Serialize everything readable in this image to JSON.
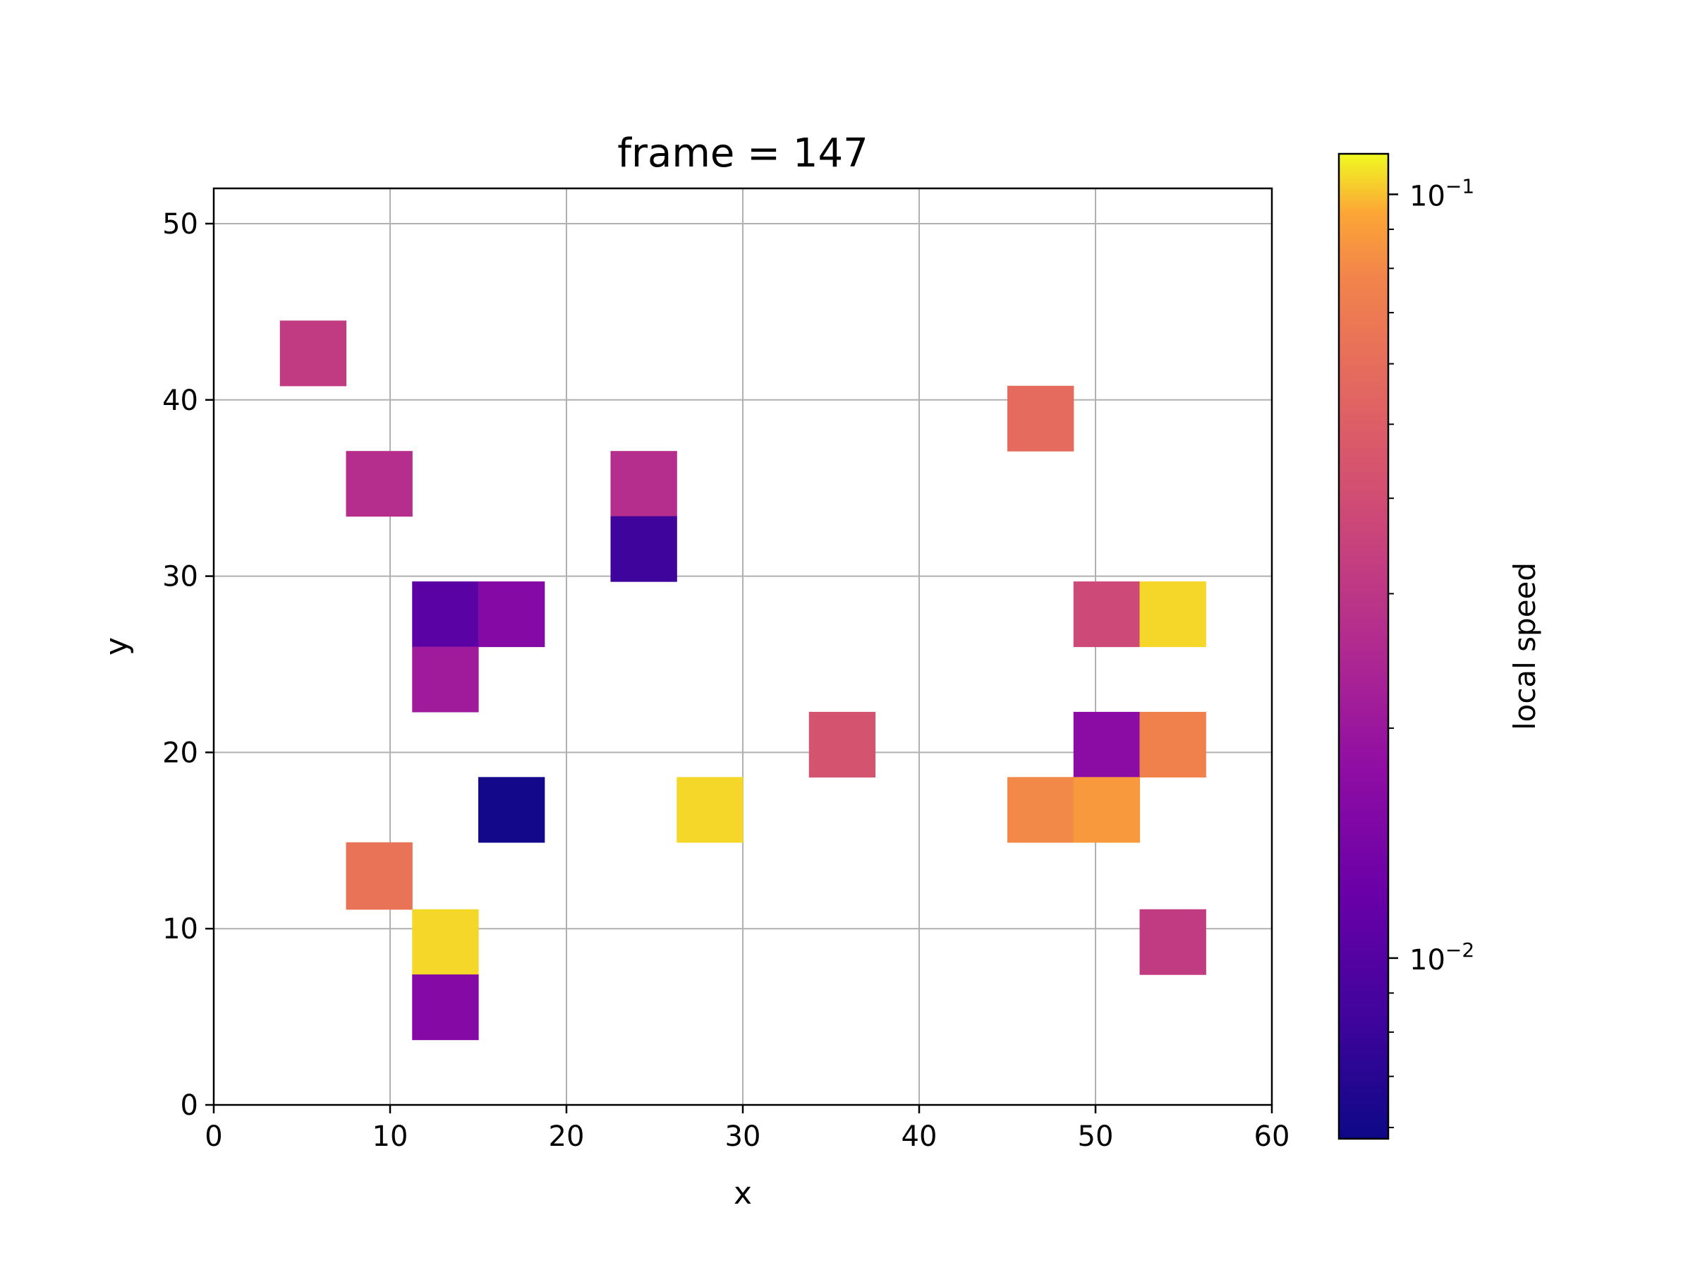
{
  "chart_data": {
    "type": "heatmap",
    "title": "frame = 147",
    "xlabel": "x",
    "ylabel": "y",
    "xlim": [
      0,
      60
    ],
    "ylim": [
      0,
      52
    ],
    "xticks": [
      0,
      10,
      20,
      30,
      40,
      50,
      60
    ],
    "yticks": [
      0,
      10,
      20,
      30,
      40,
      50
    ],
    "grid": true,
    "colorscale": "plasma",
    "colorbar": {
      "label": "local speed",
      "scale": "log",
      "range": [
        0.0058,
        0.113
      ],
      "major_ticks": [
        {
          "value": 0.01,
          "mantissa": "10",
          "exponent": "−2"
        },
        {
          "value": 0.1,
          "mantissa": "10",
          "exponent": "−1"
        }
      ],
      "minor_ticks": [
        0.006,
        0.007,
        0.008,
        0.009,
        0.02,
        0.03,
        0.04,
        0.05,
        0.06,
        0.07,
        0.08,
        0.09
      ]
    },
    "cells": [
      {
        "x0": 3.75,
        "x1": 7.5,
        "y0": 40.8,
        "y1": 44.5,
        "value": 0.032
      },
      {
        "x0": 7.5,
        "x1": 11.25,
        "y0": 33.4,
        "y1": 37.1,
        "value": 0.027
      },
      {
        "x0": 22.5,
        "x1": 26.25,
        "y0": 33.4,
        "y1": 37.1,
        "value": 0.027
      },
      {
        "x0": 22.5,
        "x1": 26.25,
        "y0": 29.7,
        "y1": 33.4,
        "value": 0.0083
      },
      {
        "x0": 11.25,
        "x1": 15.0,
        "y0": 26.0,
        "y1": 29.7,
        "value": 0.0105
      },
      {
        "x0": 15.0,
        "x1": 18.75,
        "y0": 26.0,
        "y1": 29.7,
        "value": 0.016
      },
      {
        "x0": 11.25,
        "x1": 15.0,
        "y0": 22.3,
        "y1": 26.0,
        "value": 0.021
      },
      {
        "x0": 45.0,
        "x1": 48.75,
        "y0": 37.1,
        "y1": 40.8,
        "value": 0.058
      },
      {
        "x0": 48.75,
        "x1": 52.5,
        "y0": 26.0,
        "y1": 29.7,
        "value": 0.038
      },
      {
        "x0": 52.5,
        "x1": 56.25,
        "y0": 26.0,
        "y1": 29.7,
        "value": 0.105
      },
      {
        "x0": 33.75,
        "x1": 37.5,
        "y0": 18.6,
        "y1": 22.3,
        "value": 0.043
      },
      {
        "x0": 48.75,
        "x1": 52.5,
        "y0": 18.6,
        "y1": 22.3,
        "value": 0.017
      },
      {
        "x0": 52.5,
        "x1": 56.25,
        "y0": 18.6,
        "y1": 22.3,
        "value": 0.075
      },
      {
        "x0": 15.0,
        "x1": 18.75,
        "y0": 14.9,
        "y1": 18.6,
        "value": 0.006
      },
      {
        "x0": 26.25,
        "x1": 30.0,
        "y0": 14.9,
        "y1": 18.6,
        "value": 0.105
      },
      {
        "x0": 45.0,
        "x1": 48.75,
        "y0": 14.9,
        "y1": 18.6,
        "value": 0.08
      },
      {
        "x0": 48.75,
        "x1": 52.5,
        "y0": 14.9,
        "y1": 18.6,
        "value": 0.088
      },
      {
        "x0": 7.5,
        "x1": 11.25,
        "y0": 11.1,
        "y1": 14.9,
        "value": 0.064
      },
      {
        "x0": 11.25,
        "x1": 15.0,
        "y0": 7.4,
        "y1": 11.1,
        "value": 0.105
      },
      {
        "x0": 52.5,
        "x1": 56.25,
        "y0": 7.4,
        "y1": 11.1,
        "value": 0.032
      },
      {
        "x0": 11.25,
        "x1": 15.0,
        "y0": 3.7,
        "y1": 7.4,
        "value": 0.016
      }
    ]
  }
}
